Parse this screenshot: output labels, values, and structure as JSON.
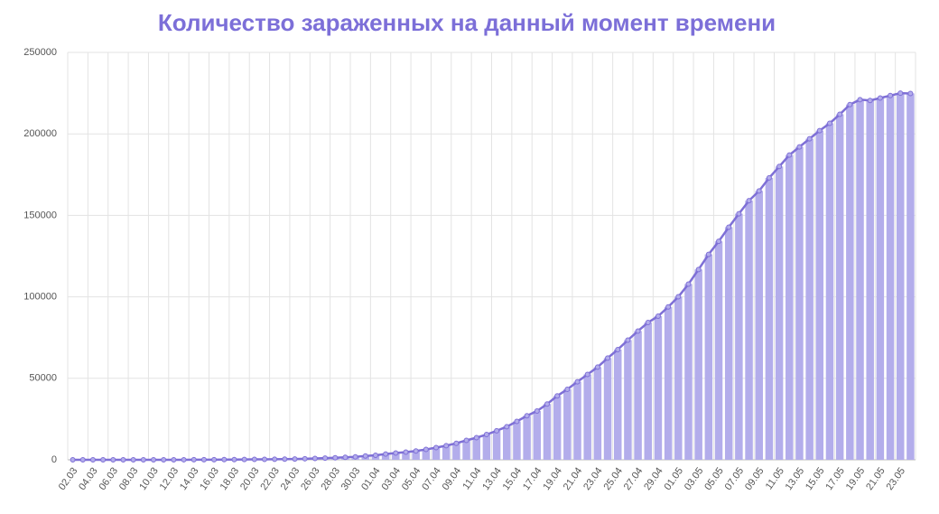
{
  "chart_data": {
    "type": "bar",
    "title": "Количество зараженных на данный момент времени",
    "categories": [
      "02.03",
      null,
      "04.03",
      null,
      "06.03",
      null,
      "08.03",
      null,
      "10.03",
      null,
      "12.03",
      null,
      "14.03",
      null,
      "16.03",
      null,
      "18.03",
      null,
      "20.03",
      null,
      "22.03",
      null,
      "24.03",
      null,
      "26.03",
      null,
      "28.03",
      null,
      "30.03",
      null,
      "01.04",
      null,
      "03.04",
      null,
      "05.04",
      null,
      "07.04",
      null,
      "09.04",
      null,
      "11.04",
      null,
      "13.04",
      null,
      "15.04",
      null,
      "17.04",
      null,
      "19.04",
      null,
      "21.04",
      null,
      "23.04",
      null,
      "25.04",
      null,
      "27.04",
      null,
      "29.04",
      null,
      "01.05",
      null,
      "03.05",
      null,
      "05.05",
      null,
      "07.05",
      null,
      "09.05",
      null,
      "11.05",
      null,
      "13.05",
      null,
      "15.05",
      null,
      "17.05",
      null,
      "19.05",
      null,
      "21.05",
      null,
      "23.05",
      null
    ],
    "values": [
      3,
      3,
      3,
      4,
      4,
      7,
      10,
      10,
      15,
      20,
      28,
      34,
      45,
      59,
      90,
      114,
      147,
      199,
      253,
      306,
      367,
      438,
      495,
      658,
      840,
      1036,
      1264,
      1534,
      1836,
      2337,
      2777,
      3548,
      4149,
      4731,
      5389,
      6343,
      7497,
      8672,
      10131,
      11917,
      13584,
      15505,
      17803,
      20328,
      23570,
      27036,
      29945,
      34236,
      39201,
      43270,
      47903,
      52389,
      56853,
      62439,
      67657,
      73435,
      79007,
      84235,
      88141,
      93806,
      100042,
      107819,
      116768,
      126039,
      134054,
      142749,
      151000,
      159000,
      165000,
      173000,
      180000,
      187000,
      192000,
      197000,
      202000,
      206500,
      212000,
      218000,
      221000,
      220500,
      222000,
      223500,
      225000,
      224800
    ],
    "color": "#b3adeb",
    "line_color": "#7e6fd6",
    "line_overlay": true,
    "ylim": [
      0,
      250000
    ],
    "yticks": [
      0,
      50000,
      100000,
      150000,
      200000,
      250000
    ],
    "grid": true
  }
}
